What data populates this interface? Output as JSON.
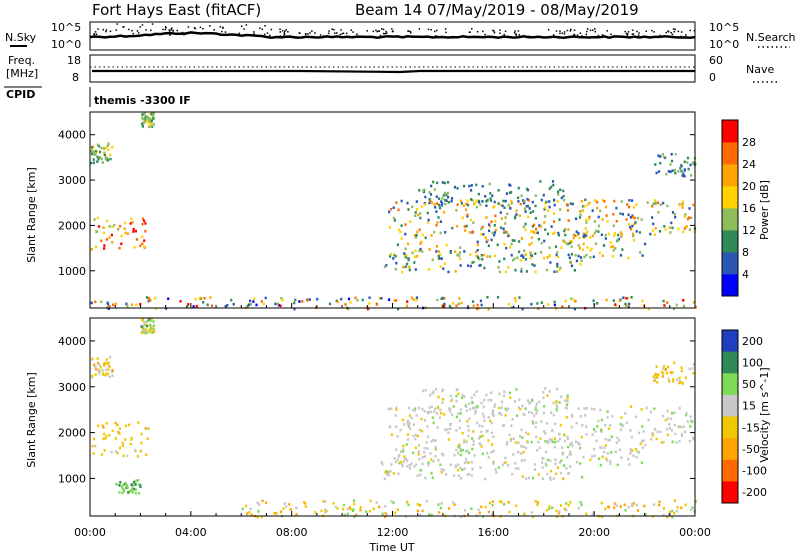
{
  "title": {
    "station": "Fort Hays East (fitACF)",
    "beam": "Beam 14 07/May/2019 - 08/May/2019"
  },
  "panels": {
    "noise": {
      "left_label": "N.Sky",
      "right_label": "N.Search",
      "ticks_left": [
        "10^5",
        "10^0"
      ],
      "ticks_right": [
        "10^5",
        "10^0"
      ]
    },
    "freq": {
      "left_label_top": "Freq.",
      "left_label_bottom": "[MHz]",
      "right_label": "Nave",
      "ticks_left": [
        "18",
        "8"
      ],
      "ticks_right": [
        "60",
        "0"
      ]
    },
    "cpid": {
      "left_label": "CPID",
      "text": "themis -3300 IF"
    }
  },
  "colors": {
    "power": [
      "#0000ff",
      "#2a56b4",
      "#2e8b57",
      "#8fbc5a",
      "#ffd200",
      "#ffa500",
      "#ff6a00",
      "#ff0000"
    ],
    "velocity": [
      "#ff0000",
      "#ff6a00",
      "#ffa500",
      "#f0c800",
      "#c8c8c8",
      "#7ed957",
      "#2e8b57",
      "#1e3fbf"
    ]
  },
  "chart_data": [
    {
      "type": "heatmap",
      "title": "",
      "xlabel": "Time UT",
      "ylabel": "Slant Range [km]",
      "x_ticks": [
        "00:00",
        "04:00",
        "08:00",
        "12:00",
        "16:00",
        "20:00",
        "00:00"
      ],
      "xlim": [
        0,
        24
      ],
      "ylim": [
        180,
        4500
      ],
      "y_ticks": [
        1000,
        2000,
        3000,
        4000
      ],
      "colorbar": {
        "label": "Power [dB]",
        "ticks": [
          "4",
          "8",
          "12",
          "16",
          "20",
          "24",
          "28"
        ],
        "range": [
          0,
          30
        ]
      },
      "echo_regions": [
        {
          "x": [
            0.0,
            2.3
          ],
          "y": [
            1500,
            2250
          ],
          "value_range": [
            14,
            30
          ]
        },
        {
          "x": [
            0.0,
            0.9
          ],
          "y": [
            3400,
            3850
          ],
          "value_range": [
            8,
            16
          ]
        },
        {
          "x": [
            2.0,
            2.5
          ],
          "y": [
            4200,
            4500
          ],
          "value_range": [
            8,
            16
          ]
        },
        {
          "x": [
            0.0,
            8.0
          ],
          "y": [
            180,
            450
          ],
          "value_range": [
            2,
            28
          ]
        },
        {
          "x": [
            8.0,
            24.0
          ],
          "y": [
            180,
            450
          ],
          "value_range": [
            2,
            28
          ]
        },
        {
          "x": [
            11.5,
            19.5
          ],
          "y": [
            1000,
            1400
          ],
          "value_range": [
            4,
            20
          ]
        },
        {
          "x": [
            12.0,
            22.0
          ],
          "y": [
            1300,
            1900
          ],
          "value_range": [
            4,
            22
          ]
        },
        {
          "x": [
            11.8,
            24.0
          ],
          "y": [
            1800,
            2600
          ],
          "value_range": [
            4,
            26
          ]
        },
        {
          "x": [
            13.0,
            19.0
          ],
          "y": [
            2400,
            3000
          ],
          "value_range": [
            4,
            12
          ]
        },
        {
          "x": [
            22.3,
            24.0
          ],
          "y": [
            3100,
            3600
          ],
          "value_range": [
            4,
            14
          ]
        }
      ]
    },
    {
      "type": "heatmap",
      "title": "",
      "xlabel": "Time UT",
      "ylabel": "Slant Range [km]",
      "x_ticks": [
        "00:00",
        "04:00",
        "08:00",
        "12:00",
        "16:00",
        "20:00",
        "00:00"
      ],
      "xlim": [
        0,
        24
      ],
      "ylim": [
        180,
        4500
      ],
      "y_ticks": [
        1000,
        2000,
        3000,
        4000
      ],
      "colorbar": {
        "label": "Velocity [m s^-1]",
        "ticks": [
          "200",
          "100",
          "50",
          "15",
          "-15",
          "-50",
          "-100",
          "-200"
        ],
        "range": [
          -250,
          250
        ]
      },
      "echo_regions": [
        {
          "x": [
            0.0,
            2.3
          ],
          "y": [
            1500,
            2250
          ],
          "value_range": [
            -60,
            -10
          ]
        },
        {
          "x": [
            0.0,
            0.9
          ],
          "y": [
            3200,
            3700
          ],
          "value_range": [
            -60,
            10
          ]
        },
        {
          "x": [
            2.0,
            2.5
          ],
          "y": [
            4200,
            4500
          ],
          "value_range": [
            -60,
            60
          ]
        },
        {
          "x": [
            1.0,
            2.0
          ],
          "y": [
            700,
            1000
          ],
          "value_range": [
            20,
            60
          ]
        },
        {
          "x": [
            6.0,
            24.0
          ],
          "y": [
            180,
            550
          ],
          "value_range": [
            -80,
            40
          ]
        },
        {
          "x": [
            11.5,
            19.5
          ],
          "y": [
            1000,
            1400
          ],
          "value_range": [
            -20,
            20
          ]
        },
        {
          "x": [
            12.0,
            22.0
          ],
          "y": [
            1300,
            1900
          ],
          "value_range": [
            -20,
            20
          ]
        },
        {
          "x": [
            11.8,
            24.0
          ],
          "y": [
            1800,
            2600
          ],
          "value_range": [
            -20,
            20
          ]
        },
        {
          "x": [
            13.0,
            19.0
          ],
          "y": [
            2400,
            3000
          ],
          "value_range": [
            -20,
            20
          ]
        },
        {
          "x": [
            22.3,
            24.0
          ],
          "y": [
            3100,
            3600
          ],
          "value_range": [
            -60,
            0
          ]
        }
      ]
    }
  ]
}
